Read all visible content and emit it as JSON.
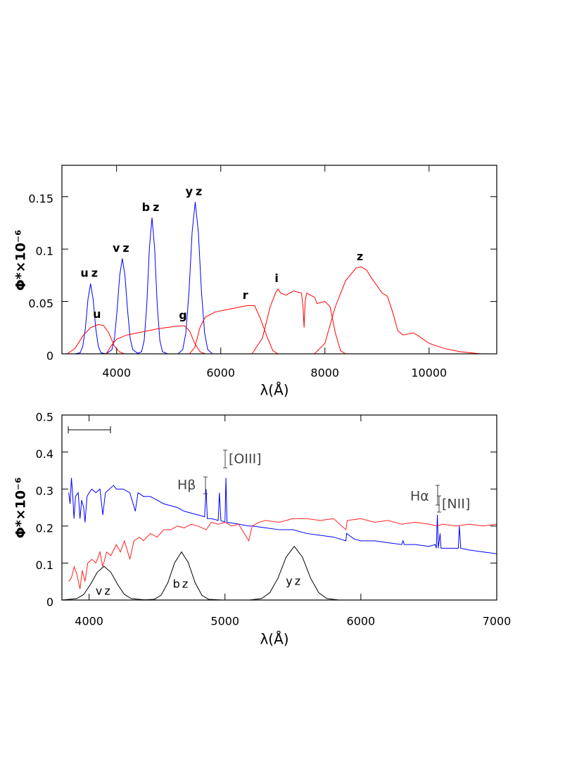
{
  "chart_data": [
    {
      "type": "line",
      "xlabel": "λ(Å)",
      "ylabel": "Φ*×10⁻⁶",
      "xlim": [
        2950,
        11300
      ],
      "ylim": [
        0,
        0.18
      ],
      "xticks": [
        4000,
        6000,
        8000,
        10000
      ],
      "yticks": [
        0,
        0.05,
        0.1,
        0.15
      ],
      "series": [
        {
          "name": "uz",
          "color": "#0000ff",
          "x": [
            3200,
            3300,
            3350,
            3400,
            3450,
            3500,
            3550,
            3600,
            3650,
            3700,
            3800
          ],
          "values": [
            0,
            0.001,
            0.007,
            0.024,
            0.052,
            0.067,
            0.052,
            0.024,
            0.007,
            0.001,
            0
          ]
        },
        {
          "name": "vz",
          "color": "#0000ff",
          "x": [
            3800,
            3910,
            3960,
            4010,
            4060,
            4110,
            4160,
            4210,
            4260,
            4310,
            4420
          ],
          "values": [
            0,
            0.004,
            0.015,
            0.042,
            0.075,
            0.091,
            0.075,
            0.042,
            0.015,
            0.004,
            0
          ]
        },
        {
          "name": "bz",
          "color": "#0000ff",
          "x": [
            4380,
            4480,
            4530,
            4580,
            4630,
            4680,
            4730,
            4780,
            4830,
            4880,
            4980
          ],
          "values": [
            0,
            0.002,
            0.013,
            0.047,
            0.101,
            0.13,
            0.101,
            0.047,
            0.013,
            0.002,
            0
          ]
        },
        {
          "name": "yz",
          "color": "#0000ff",
          "x": [
            5180,
            5270,
            5330,
            5390,
            5450,
            5510,
            5570,
            5630,
            5690,
            5750,
            5840
          ],
          "values": [
            0,
            0.004,
            0.02,
            0.059,
            0.116,
            0.145,
            0.116,
            0.059,
            0.02,
            0.004,
            0
          ]
        },
        {
          "name": "u",
          "color": "#ff0000",
          "x": [
            3050,
            3200,
            3350,
            3500,
            3650,
            3750,
            3850,
            3950,
            4050,
            4150
          ],
          "values": [
            0,
            0.005,
            0.017,
            0.025,
            0.028,
            0.027,
            0.02,
            0.008,
            0.002,
            0
          ]
        },
        {
          "name": "g",
          "color": "#ff0000",
          "x": [
            3800,
            3900,
            4000,
            4200,
            4500,
            4800,
            5100,
            5300,
            5400,
            5500,
            5600,
            5700
          ],
          "values": [
            0,
            0.008,
            0.014,
            0.018,
            0.021,
            0.024,
            0.026,
            0.027,
            0.022,
            0.01,
            0.002,
            0
          ]
        },
        {
          "name": "r",
          "color": "#ff0000",
          "x": [
            5400,
            5500,
            5600,
            5700,
            5900,
            6200,
            6500,
            6650,
            6750,
            6900,
            7000,
            7100
          ],
          "values": [
            0,
            0.006,
            0.025,
            0.035,
            0.04,
            0.043,
            0.046,
            0.046,
            0.035,
            0.015,
            0.003,
            0
          ]
        },
        {
          "name": "i",
          "color": "#ff0000",
          "x": [
            6600,
            6800,
            6950,
            7050,
            7100,
            7150,
            7250,
            7400,
            7550,
            7580,
            7600,
            7620,
            7650,
            7800,
            7850,
            8000,
            8100,
            8200,
            8300,
            8400
          ],
          "values": [
            0,
            0.015,
            0.045,
            0.058,
            0.062,
            0.058,
            0.056,
            0.06,
            0.058,
            0.045,
            0.025,
            0.05,
            0.058,
            0.054,
            0.048,
            0.05,
            0.045,
            0.02,
            0.003,
            0
          ]
        },
        {
          "name": "z",
          "color": "#ff0000",
          "x": [
            7800,
            8000,
            8200,
            8400,
            8600,
            8700,
            8800,
            8900,
            9100,
            9200,
            9300,
            9400,
            9500,
            9700,
            9800,
            10000,
            10300,
            10600,
            11000
          ],
          "values": [
            0,
            0.01,
            0.045,
            0.07,
            0.082,
            0.083,
            0.08,
            0.072,
            0.058,
            0.055,
            0.04,
            0.022,
            0.018,
            0.02,
            0.017,
            0.01,
            0.005,
            0.002,
            0
          ]
        }
      ]
    },
    {
      "type": "line",
      "xlabel": "λ(Å)",
      "ylabel": "Φ*×10⁻⁶",
      "xlim": [
        3800,
        7000
      ],
      "ylim": [
        0,
        0.5
      ],
      "xticks": [
        4000,
        5000,
        6000,
        7000
      ],
      "yticks": [
        0,
        0.1,
        0.2,
        0.3,
        0.4,
        0.5
      ],
      "annotations": [
        "Hβ",
        "[OIII]",
        "Hα",
        "[NII]"
      ],
      "series": [
        {
          "color": "#0000ff",
          "x": [
            3850,
            3860,
            3870,
            3880,
            3889,
            3900,
            3920,
            3933,
            3945,
            3960,
            3970,
            3985,
            4000,
            4020,
            4050,
            4080,
            4101,
            4120,
            4150,
            4180,
            4200,
            4250,
            4300,
            4340,
            4360,
            4400,
            4450,
            4500,
            4550,
            4600,
            4650,
            4700,
            4750,
            4800,
            4850,
            4861,
            4870,
            4900,
            4950,
            4959,
            4970,
            5000,
            5007,
            5015,
            5100,
            5175,
            5200,
            5300,
            5400,
            5500,
            5600,
            5700,
            5800,
            5890,
            5895,
            5950,
            6000,
            6100,
            6200,
            6300,
            6310,
            6320,
            6400,
            6500,
            6548,
            6555,
            6563,
            6570,
            6583,
            6590,
            6650,
            6717,
            6725,
            6735,
            6800,
            6900,
            7000
          ],
          "values": [
            0.29,
            0.26,
            0.33,
            0.28,
            0.22,
            0.28,
            0.29,
            0.22,
            0.27,
            0.25,
            0.21,
            0.28,
            0.29,
            0.3,
            0.29,
            0.3,
            0.23,
            0.29,
            0.3,
            0.31,
            0.3,
            0.3,
            0.29,
            0.24,
            0.29,
            0.28,
            0.28,
            0.27,
            0.26,
            0.255,
            0.25,
            0.24,
            0.235,
            0.23,
            0.225,
            0.3,
            0.22,
            0.22,
            0.215,
            0.29,
            0.215,
            0.21,
            0.33,
            0.21,
            0.205,
            0.2,
            0.2,
            0.195,
            0.19,
            0.19,
            0.18,
            0.175,
            0.17,
            0.16,
            0.18,
            0.165,
            0.16,
            0.16,
            0.155,
            0.15,
            0.16,
            0.15,
            0.15,
            0.145,
            0.15,
            0.14,
            0.23,
            0.14,
            0.18,
            0.14,
            0.14,
            0.14,
            0.2,
            0.14,
            0.135,
            0.13,
            0.125
          ]
        },
        {
          "color": "#ff2020",
          "x": [
            3850,
            3870,
            3890,
            3910,
            3933,
            3950,
            3970,
            3990,
            4020,
            4050,
            4080,
            4100,
            4130,
            4160,
            4200,
            4230,
            4260,
            4300,
            4330,
            4370,
            4400,
            4450,
            4500,
            4550,
            4600,
            4650,
            4700,
            4750,
            4800,
            4861,
            4900,
            4950,
            5000,
            5050,
            5100,
            5175,
            5200,
            5250,
            5300,
            5400,
            5500,
            5600,
            5700,
            5800,
            5890,
            5900,
            6000,
            6100,
            6200,
            6300,
            6400,
            6500,
            6563,
            6600,
            6700,
            6800,
            6900,
            7000
          ],
          "values": [
            0.05,
            0.06,
            0.09,
            0.07,
            0.03,
            0.08,
            0.05,
            0.1,
            0.11,
            0.1,
            0.13,
            0.09,
            0.13,
            0.12,
            0.15,
            0.13,
            0.16,
            0.11,
            0.16,
            0.17,
            0.16,
            0.18,
            0.17,
            0.19,
            0.19,
            0.2,
            0.195,
            0.205,
            0.2,
            0.19,
            0.21,
            0.205,
            0.21,
            0.2,
            0.205,
            0.16,
            0.2,
            0.21,
            0.215,
            0.21,
            0.22,
            0.22,
            0.215,
            0.22,
            0.19,
            0.215,
            0.22,
            0.21,
            0.215,
            0.205,
            0.21,
            0.205,
            0.2,
            0.205,
            0.2,
            0.205,
            0.2,
            0.205
          ]
        },
        {
          "name": "vz",
          "color": "#000000",
          "x": [
            3800,
            3910,
            3960,
            4010,
            4060,
            4110,
            4160,
            4210,
            4260,
            4310,
            4420
          ],
          "values": [
            0,
            0.004,
            0.015,
            0.042,
            0.075,
            0.091,
            0.075,
            0.042,
            0.015,
            0.004,
            0
          ]
        },
        {
          "name": "bz",
          "color": "#000000",
          "x": [
            4380,
            4480,
            4530,
            4580,
            4630,
            4680,
            4730,
            4780,
            4830,
            4880,
            4980
          ],
          "values": [
            0,
            0.002,
            0.013,
            0.047,
            0.101,
            0.13,
            0.101,
            0.047,
            0.013,
            0.002,
            0
          ]
        },
        {
          "name": "yz",
          "color": "#000000",
          "x": [
            5180,
            5270,
            5330,
            5390,
            5450,
            5510,
            5570,
            5630,
            5690,
            5750,
            5840
          ],
          "values": [
            0,
            0.004,
            0.02,
            0.059,
            0.116,
            0.145,
            0.116,
            0.059,
            0.02,
            0.004,
            0
          ]
        }
      ]
    }
  ]
}
